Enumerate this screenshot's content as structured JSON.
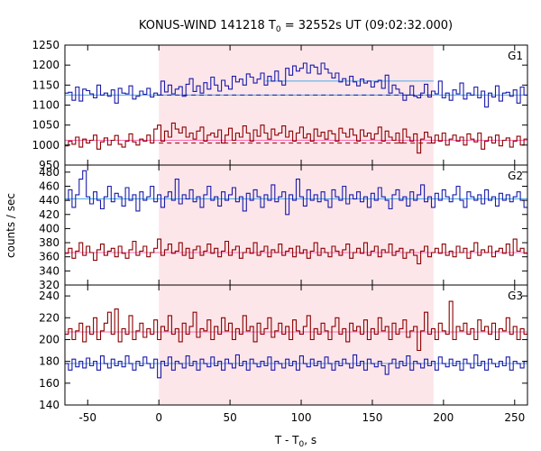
{
  "chart_data": {
    "type": "line",
    "title_main": "KONUS-WIND 141218 T",
    "title_sub": "0",
    "title_rest": " = 32552s UT (09:02:32.000)",
    "xlabel_main": "T - T",
    "xlabel_sub": "0",
    "xlabel_rest": ", s",
    "ylabel": "counts / sec",
    "xlim": [
      -66,
      259
    ],
    "xticks": [
      -50,
      0,
      50,
      100,
      150,
      200,
      250
    ],
    "highlight_interval": [
      0,
      193
    ],
    "colors": {
      "high_series": "#8b0000",
      "low_series": "#1a1aaa",
      "high_bg": "#ff69b4",
      "low_bg": "#4aa8e8",
      "highlight": "#fde6ea"
    },
    "panels": [
      {
        "label": "G1",
        "ylim": [
          950,
          1250
        ],
        "yticks": [
          950,
          1000,
          1050,
          1100,
          1150,
          1200,
          1250
        ],
        "series": [
          {
            "role": "upper",
            "background": 1125,
            "dashed_level": 1125,
            "dashed_range": [
              0,
              193
            ],
            "solid_levels": [
              {
                "x0": 75,
                "x1": 193,
                "y": 1160
              }
            ],
            "values": [
              1130,
              1132,
              1112,
              1145,
              1110,
              1140,
              1136,
              1128,
              1118,
              1150,
              1125,
              1130,
              1122,
              1138,
              1105,
              1142,
              1130,
              1128,
              1148,
              1115,
              1122,
              1135,
              1127,
              1142,
              1120,
              1130,
              1125,
              1160,
              1133,
              1150,
              1128,
              1140,
              1146,
              1122,
              1152,
              1166,
              1134,
              1148,
              1130,
              1156,
              1140,
              1170,
              1150,
              1135,
              1162,
              1148,
              1140,
              1172,
              1158,
              1165,
              1150,
              1178,
              1170,
              1155,
              1165,
              1180,
              1150,
              1172,
              1160,
              1185,
              1160,
              1150,
              1192,
              1175,
              1198,
              1185,
              1192,
              1205,
              1180,
              1200,
              1195,
              1178,
              1205,
              1190,
              1180,
              1168,
              1180,
              1158,
              1166,
              1150,
              1172,
              1158,
              1148,
              1165,
              1155,
              1160,
              1145,
              1158,
              1162,
              1142,
              1175,
              1130,
              1150,
              1140,
              1130,
              1112,
              1125,
              1148,
              1122,
              1118,
              1130,
              1152,
              1120,
              1135,
              1128,
              1160,
              1118,
              1130,
              1112,
              1138,
              1128,
              1155,
              1115,
              1130,
              1125,
              1145,
              1118,
              1135,
              1095,
              1130,
              1120,
              1148,
              1110,
              1130,
              1132,
              1122,
              1138,
              1105,
              1145,
              1125
            ]
          },
          {
            "role": "lower",
            "background": 1012,
            "dashed_level": 1005,
            "dashed_range": [
              0,
              193
            ],
            "solid_levels": [],
            "values": [
              998,
              1010,
              1002,
              1020,
              995,
              1015,
              1005,
              1012,
              1025,
              990,
              1008,
              1018,
              1000,
              1012,
              1024,
              1002,
              995,
              1010,
              1028,
              1008,
              1000,
              1015,
              1010,
              1025,
              1005,
              1040,
              1050,
              1010,
              1035,
              1020,
              1055,
              1040,
              1030,
              1045,
              1020,
              1030,
              1015,
              1035,
              1045,
              1010,
              1025,
              1030,
              1020,
              1038,
              1005,
              1025,
              1042,
              1012,
              1030,
              1020,
              1048,
              1030,
              1010,
              1038,
              1022,
              1050,
              1030,
              1015,
              1040,
              1025,
              1030,
              1048,
              1020,
              1035,
              1010,
              1030,
              1045,
              1018,
              1028,
              1010,
              1040,
              1022,
              1032,
              1015,
              1036,
              1028,
              1010,
              1042,
              1030,
              1020,
              1040,
              1025,
              1010,
              1038,
              1022,
              1030,
              1015,
              1028,
              1045,
              1010,
              1035,
              1020,
              1012,
              1030,
              1005,
              1040,
              1020,
              1010,
              1028,
              980,
              1015,
              1032,
              1020,
              1005,
              1025,
              1010,
              1030,
              1000,
              1015,
              1025,
              1010,
              1020,
              1000,
              1028,
              1015,
              1008,
              1030,
              990,
              1010,
              1020,
              1005,
              1025,
              998,
              1012,
              1018,
              995,
              1010,
              1022,
              1000,
              1015
            ]
          }
        ]
      },
      {
        "label": "G2",
        "ylim": [
          320,
          490
        ],
        "yticks": [
          320,
          340,
          360,
          380,
          400,
          420,
          440,
          460,
          480
        ],
        "series": [
          {
            "role": "upper",
            "background": 442,
            "solid_levels": [],
            "values": [
              440,
              455,
              430,
              448,
              470,
              482,
              445,
              435,
              452,
              440,
              428,
              445,
              460,
              438,
              450,
              445,
              432,
              458,
              440,
              448,
              425,
              452,
              440,
              445,
              460,
              438,
              448,
              430,
              445,
              452,
              440,
              470,
              435,
              448,
              442,
              455,
              438,
              445,
              430,
              448,
              460,
              440,
              445,
              432,
              452,
              440,
              448,
              458,
              438,
              445,
              425,
              450,
              440,
              455,
              445,
              430,
              448,
              440,
              462,
              438,
              445,
              452,
              420,
              448,
              440,
              470,
              445,
              432,
              455,
              440,
              448,
              438,
              452,
              440,
              430,
              455,
              445,
              440,
              460,
              435,
              448,
              442,
              452,
              438,
              445,
              430,
              450,
              440,
              458,
              445,
              440,
              428,
              448,
              455,
              440,
              445,
              432,
              452,
              440,
              448,
              462,
              438,
              445,
              430,
              450,
              440,
              455,
              445,
              438,
              448,
              460,
              440,
              430,
              452,
              445,
              440,
              448,
              435,
              455,
              440,
              445,
              432,
              450,
              440,
              448,
              438,
              445,
              452,
              440,
              430
            ]
          },
          {
            "role": "lower",
            "background": 366,
            "solid_levels": [],
            "values": [
              365,
              372,
              358,
              368,
              380,
              362,
              375,
              366,
              355,
              370,
              378,
              362,
              368,
              372,
              360,
              375,
              365,
              358,
              370,
              382,
              362,
              368,
              375,
              360,
              366,
              372,
              385,
              362,
              370,
              378,
              365,
              368,
              380,
              362,
              372,
              358,
              370,
              375,
              362,
              368,
              378,
              365,
              372,
              360,
              368,
              382,
              362,
              370,
              375,
              358,
              366,
              372,
              365,
              380,
              362,
              368,
              375,
              360,
              370,
              366,
              378,
              362,
              368,
              372,
              360,
              375,
              365,
              370,
              358,
              368,
              380,
              362,
              372,
              366,
              360,
              375,
              368,
              362,
              370,
              378,
              358,
              366,
              372,
              365,
              380,
              362,
              368,
              375,
              360,
              370,
              366,
              378,
              362,
              368,
              372,
              358,
              366,
              370,
              362,
              350,
              368,
              375,
              360,
              366,
              372,
              365,
              378,
              362,
              368,
              360,
              375,
              366,
              372,
              358,
              368,
              380,
              362,
              370,
              366,
              375,
              360,
              368,
              372,
              365,
              378,
              362,
              385,
              368,
              372,
              365
            ]
          }
        ]
      },
      {
        "label": "G3",
        "ylim": [
          140,
          250
        ],
        "yticks": [
          140,
          160,
          180,
          200,
          220,
          240
        ],
        "series": [
          {
            "role": "upper",
            "background": 207,
            "solid_levels": [],
            "values": [
              205,
              210,
              200,
              208,
              215,
              198,
              212,
              205,
              220,
              200,
              208,
              215,
              225,
              205,
              228,
              198,
              210,
              205,
              222,
              200,
              208,
              215,
              202,
              210,
              205,
              218,
              200,
              212,
              208,
              222,
              205,
              210,
              198,
              215,
              205,
              212,
              225,
              202,
              210,
              208,
              218,
              200,
              212,
              205,
              220,
              208,
              215,
              200,
              210,
              205,
              222,
              208,
              212,
              198,
              215,
              205,
              210,
              220,
              202,
              208,
              215,
              205,
              212,
              200,
              218,
              208,
              205,
              212,
              222,
              200,
              210,
              205,
              215,
              208,
              200,
              212,
              220,
              205,
              210,
              198,
              215,
              208,
              212,
              205,
              218,
              200,
              210,
              205,
              220,
              208,
              212,
              200,
              215,
              205,
              210,
              218,
              202,
              208,
              212,
              190,
              208,
              225,
              205,
              210,
              200,
              215,
              208,
              205,
              235,
              200,
              212,
              208,
              215,
              205,
              210,
              200,
              218,
              208,
              212,
              205,
              215,
              200,
              210,
              208,
              220,
              205,
              212,
              200,
              210,
              205
            ]
          },
          {
            "role": "lower",
            "background": 178,
            "solid_levels": [],
            "values": [
              178,
              172,
              182,
              175,
              180,
              174,
              183,
              176,
              180,
              172,
              185,
              178,
              174,
              182,
              176,
              180,
              175,
              185,
              178,
              172,
              180,
              176,
              184,
              178,
              174,
              182,
              165,
              180,
              176,
              184,
              172,
              180,
              178,
              174,
              185,
              176,
              180,
              172,
              182,
              178,
              175,
              184,
              176,
              180,
              172,
              182,
              178,
              174,
              186,
              176,
              180,
              172,
              182,
              178,
              175,
              180,
              176,
              184,
              172,
              180,
              178,
              174,
              182,
              176,
              180,
              172,
              185,
              178,
              175,
              182,
              176,
              180,
              174,
              184,
              178,
              172,
              180,
              176,
              182,
              178,
              174,
              186,
              176,
              180,
              172,
              182,
              178,
              175,
              180,
              176,
              168,
              178,
              182,
              174,
              180,
              176,
              185,
              172,
              180,
              178,
              174,
              182,
              176,
              180,
              172,
              184,
              178,
              175,
              182,
              176,
              180,
              172,
              182,
              178,
              174,
              186,
              176,
              180,
              172,
              182,
              178,
              175,
              180,
              176,
              184,
              172,
              180,
              178,
              174,
              180
            ]
          }
        ]
      }
    ]
  }
}
